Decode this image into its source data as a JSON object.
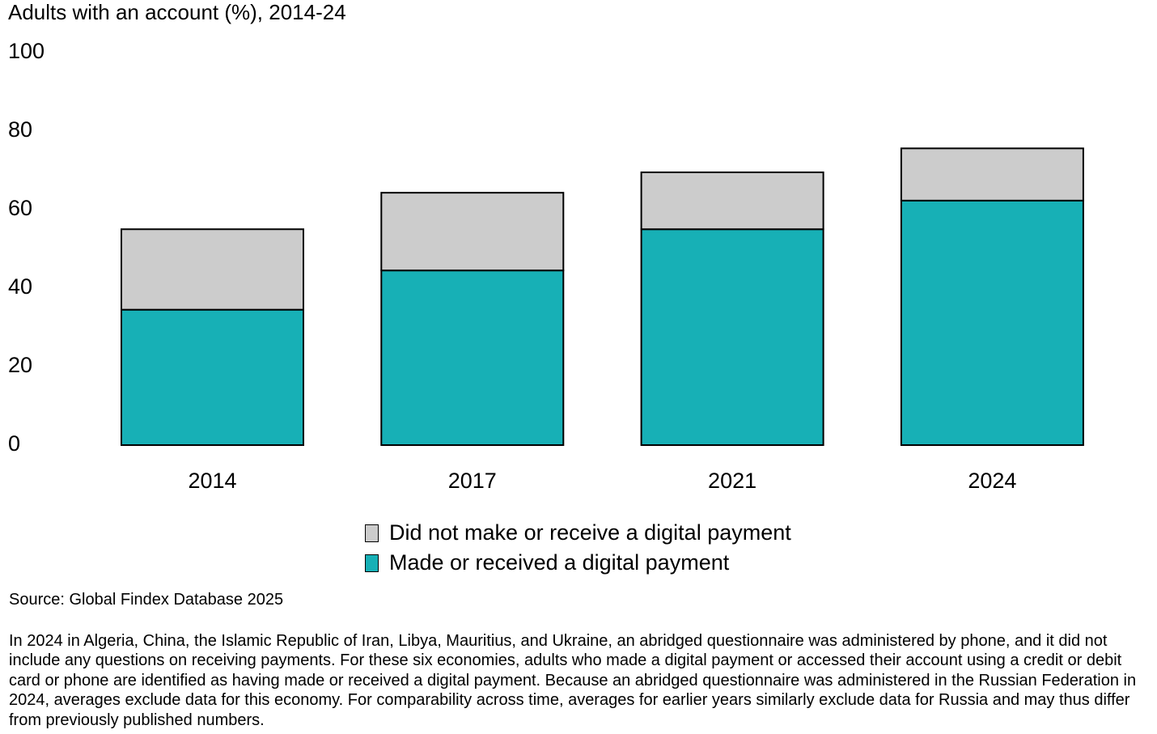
{
  "chart_data": {
    "type": "bar",
    "stacked": true,
    "title": "Adults with an account (%), 2014-24",
    "categories": [
      "2014",
      "2017",
      "2021",
      "2024"
    ],
    "series": [
      {
        "name": "Made or received a digital payment",
        "values": [
          34.5,
          44.5,
          55,
          62.3
        ],
        "color": "#17b0b6"
      },
      {
        "name": "Did not make or receive a digital payment",
        "values": [
          20.5,
          19.8,
          14.5,
          13.3
        ],
        "color": "#cccccc"
      }
    ],
    "ylim": [
      0,
      100
    ],
    "yticks": [
      "0",
      "20",
      "40",
      "60",
      "80",
      "100"
    ],
    "grid": false,
    "legend": "bottom-center"
  },
  "legend": {
    "items": [
      {
        "label": "Did not make or receive a digital payment",
        "color": "#cccccc"
      },
      {
        "label": "Made or received a digital payment",
        "color": "#17b0b6"
      }
    ]
  },
  "source": "Source: Global Findex Database 2025",
  "note": "In 2024 in Algeria, China, the Islamic Republic of Iran, Libya, Mauritius, and Ukraine, an abridged questionnaire was administered by phone, and it did not include any questions on receiving payments. For these six economies, adults who made a digital payment or accessed their account using a credit or debit card or phone are identified as having made or received a digital payment. Because an abridged questionnaire was administered in the Russian Federation in 2024, averages exclude data for this economy. For comparability across time, averages for earlier years similarly exclude data for Russia and may thus differ from previously published numbers."
}
